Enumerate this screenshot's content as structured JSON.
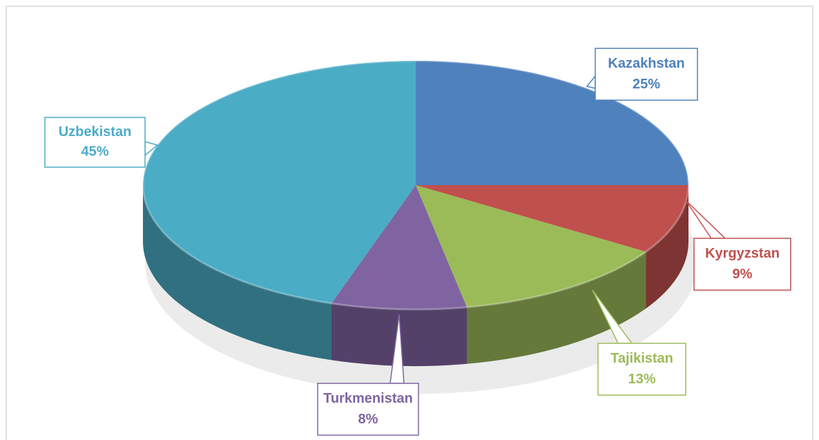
{
  "chart_data": {
    "type": "pie3d",
    "categories": [
      "Kazakhstan",
      "Kyrgyzstan",
      "Tajikistan",
      "Turkmenistan",
      "Uzbekistan"
    ],
    "values": [
      25,
      9,
      13,
      8,
      45
    ],
    "value_labels": [
      "25%",
      "9%",
      "13%",
      "8%",
      "45%"
    ],
    "colors": [
      "#4f81bd",
      "#c0504d",
      "#9bbb59",
      "#8064a2",
      "#4bacc6"
    ]
  }
}
